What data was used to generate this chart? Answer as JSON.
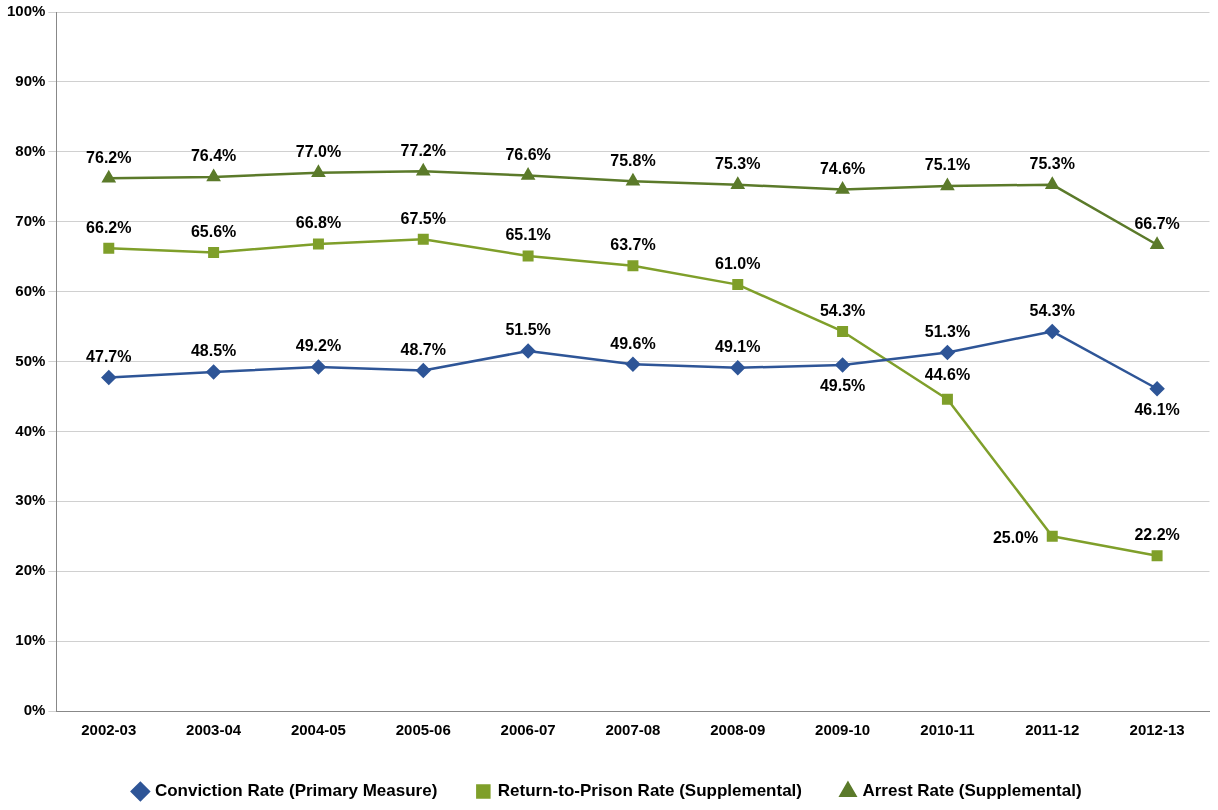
{
  "chart_data": {
    "type": "line",
    "categories": [
      "2002-03",
      "2003-04",
      "2004-05",
      "2005-06",
      "2006-07",
      "2007-08",
      "2008-09",
      "2009-10",
      "2010-11",
      "2011-12",
      "2012-13"
    ],
    "series": [
      {
        "name": "Conviction Rate (Primary Measure)",
        "color": "#2e5597",
        "marker": "diamond",
        "values": [
          47.7,
          48.5,
          49.2,
          48.7,
          51.5,
          49.6,
          49.1,
          49.5,
          51.3,
          54.3,
          46.1
        ],
        "value_labels": [
          "47.7%",
          "48.5%",
          "49.2%",
          "48.7%",
          "51.5%",
          "49.6%",
          "49.1%",
          "49.5%",
          "51.3%",
          "54.3%",
          "46.1%"
        ]
      },
      {
        "name": "Return-to-Prison Rate (Supplemental)",
        "color": "#7f9f2a",
        "marker": "square",
        "values": [
          66.2,
          65.6,
          66.8,
          67.5,
          65.1,
          63.7,
          61.0,
          54.3,
          44.6,
          25.0,
          22.2
        ],
        "value_labels": [
          "66.2%",
          "65.6%",
          "66.8%",
          "67.5%",
          "65.1%",
          "63.7%",
          "61.0%",
          "54.3%",
          "44.6%",
          "25.0%",
          "22.2%"
        ]
      },
      {
        "name": "Arrest Rate (Supplemental)",
        "color": "#5b7a2a",
        "marker": "triangle",
        "values": [
          76.2,
          76.4,
          77.0,
          77.2,
          76.6,
          75.8,
          75.3,
          74.6,
          75.1,
          75.3,
          66.7
        ],
        "value_labels": [
          "76.2%",
          "76.4%",
          "77.0%",
          "77.2%",
          "76.6%",
          "75.8%",
          "75.3%",
          "74.6%",
          "75.1%",
          "75.3%",
          "66.7%"
        ]
      }
    ],
    "ylim": [
      0,
      100
    ],
    "yticks": [
      {
        "value": 0,
        "label": "0%"
      },
      {
        "value": 10,
        "label": "10%"
      },
      {
        "value": 20,
        "label": "20%"
      },
      {
        "value": 30,
        "label": "30%"
      },
      {
        "value": 40,
        "label": "40%"
      },
      {
        "value": 50,
        "label": "50%"
      },
      {
        "value": 60,
        "label": "60%"
      },
      {
        "value": 70,
        "label": "70%"
      },
      {
        "value": 80,
        "label": "80%"
      },
      {
        "value": 90,
        "label": "90%"
      },
      {
        "value": 100,
        "label": "100%"
      }
    ],
    "grid": "y",
    "legend": "bottom",
    "line_style": "solid"
  }
}
